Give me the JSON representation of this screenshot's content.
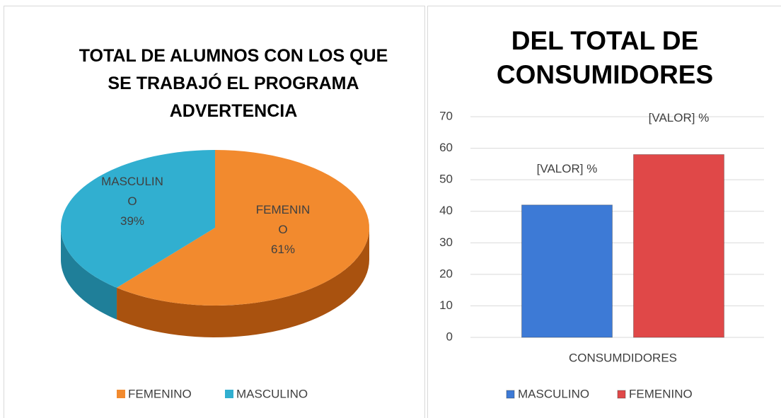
{
  "chart_data": [
    {
      "type": "pie",
      "title": "TOTAL DE ALUMNOS CON LOS QUE SE TRABAJÓ EL PROGRAMA ADVERTENCIA",
      "categories": [
        "FEMENINO",
        "MASCULINO"
      ],
      "values": [
        61,
        39
      ],
      "value_labels": [
        "61%",
        "39%"
      ],
      "colors": [
        "#f28a2e",
        "#31afd0"
      ],
      "side_colors": [
        "#a9520f",
        "#1f7f99"
      ],
      "legend": "bottom"
    },
    {
      "type": "bar",
      "title": "DEL TOTAL DE CONSUMIDORES",
      "categories": [
        "CONSUMDIDORES"
      ],
      "series": [
        {
          "name": "MASCULINO",
          "color": "#3d7ad6",
          "values": [
            42
          ],
          "value_labels": [
            "[VALOR] %"
          ]
        },
        {
          "name": "FEMENINO",
          "color": "#e04848",
          "values": [
            58
          ],
          "value_labels": [
            "[VALOR] %"
          ]
        }
      ],
      "ylim": [
        0,
        70
      ],
      "yticks": [
        0,
        10,
        20,
        30,
        40,
        50,
        60,
        70
      ],
      "grid": true,
      "legend": "bottom"
    }
  ]
}
